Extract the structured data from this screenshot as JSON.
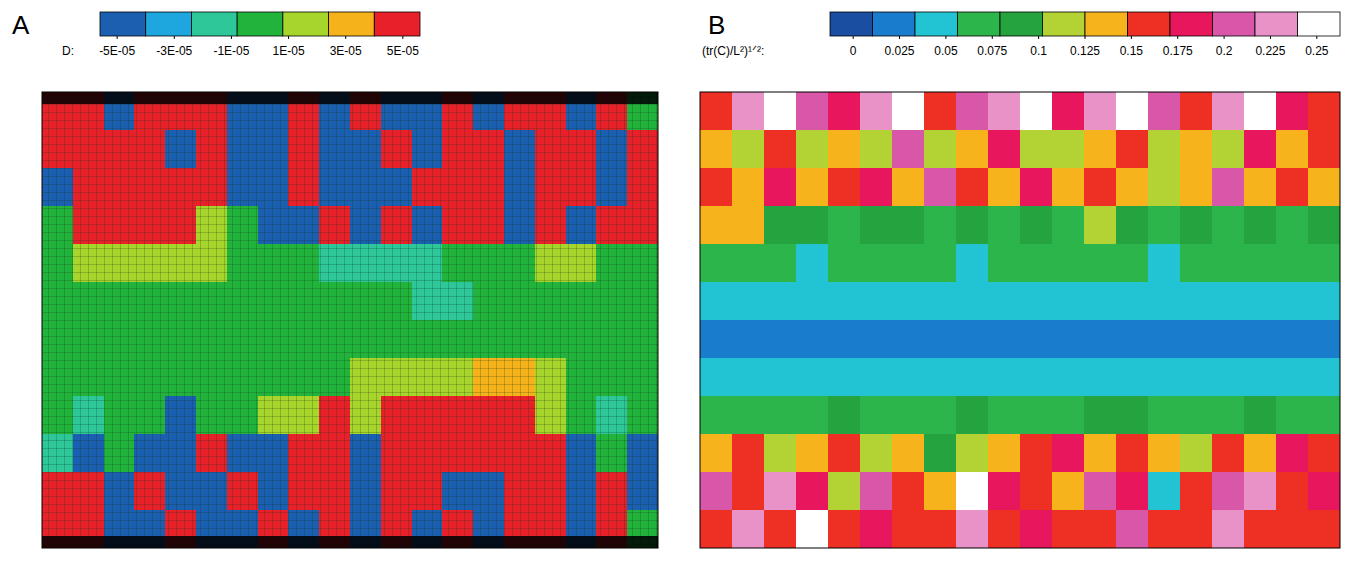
{
  "chart_data": [
    {
      "type": "heatmap",
      "title": "A",
      "tick_labels": false,
      "colorbar": {
        "label": "D:",
        "range": [
          -5.6e-05,
          5.6e-05
        ],
        "ticks": [
          {
            "value": -5e-05,
            "label": "-5E-05"
          },
          {
            "value": -3e-05,
            "label": "-3E-05"
          },
          {
            "value": -1e-05,
            "label": "-1E-05"
          },
          {
            "value": 1e-05,
            "label": "1E-05"
          },
          {
            "value": 3e-05,
            "label": "3E-05"
          },
          {
            "value": 5e-05,
            "label": "5E-05"
          }
        ],
        "colors": [
          "#1b5fb0",
          "#1ea6df",
          "#2dc79a",
          "#22b33c",
          "#a8d52b",
          "#f6b21a",
          "#e8202a"
        ]
      },
      "cells": [
        [
          5e-05,
          5e-05,
          -5e-05,
          5e-05,
          5e-05,
          5e-05,
          -5e-05,
          -5e-05,
          5e-05,
          -5e-05,
          5e-05,
          -5e-05,
          -5e-05,
          5e-05,
          -5e-05,
          5e-05,
          5e-05,
          -5e-05,
          5e-05,
          0
        ],
        [
          5e-05,
          5e-05,
          5e-05,
          5e-05,
          -5e-05,
          5e-05,
          -5e-05,
          -5e-05,
          5e-05,
          -5e-05,
          -5e-05,
          5e-05,
          -5e-05,
          5e-05,
          5e-05,
          -5e-05,
          5e-05,
          5e-05,
          -5e-05,
          5e-05
        ],
        [
          -5e-05,
          5e-05,
          5e-05,
          5e-05,
          5e-05,
          5e-05,
          -5e-05,
          -5e-05,
          5e-05,
          -5e-05,
          -5e-05,
          -5e-05,
          5e-05,
          5e-05,
          5e-05,
          -5e-05,
          5e-05,
          5e-05,
          -5e-05,
          5e-05
        ],
        [
          0,
          5e-05,
          5e-05,
          5e-05,
          5e-05,
          1.5e-05,
          0,
          -5e-05,
          -5e-05,
          5e-05,
          -5e-05,
          5e-05,
          -5e-05,
          5e-05,
          5e-05,
          -5e-05,
          5e-05,
          -5e-05,
          5e-05,
          5e-05
        ],
        [
          0,
          1.5e-05,
          1.5e-05,
          1.5e-05,
          1.5e-05,
          1.5e-05,
          0,
          0,
          0,
          -1.5e-05,
          -1.5e-05,
          -1.5e-05,
          -1.5e-05,
          0,
          0,
          0,
          1.5e-05,
          1.5e-05,
          0,
          0
        ],
        [
          0,
          0,
          0,
          0,
          0,
          0,
          0,
          0,
          0,
          0,
          0,
          0,
          -1.5e-05,
          -1.5e-05,
          0,
          0,
          0,
          0,
          0,
          0
        ],
        [
          0,
          0,
          0,
          0,
          0,
          0,
          0,
          0,
          0,
          0,
          0,
          0,
          0,
          0,
          0,
          0,
          0,
          0,
          0,
          0
        ],
        [
          0,
          0,
          0,
          0,
          0,
          0,
          0,
          0,
          0,
          0,
          1.5e-05,
          1.5e-05,
          1.5e-05,
          1.5e-05,
          3e-05,
          3e-05,
          1.5e-05,
          0,
          0,
          0
        ],
        [
          0,
          -1.5e-05,
          0,
          0,
          -5e-05,
          0,
          0,
          1.5e-05,
          1.5e-05,
          5e-05,
          1.5e-05,
          5e-05,
          5e-05,
          5e-05,
          5e-05,
          5e-05,
          1.5e-05,
          0,
          -1.5e-05,
          0
        ],
        [
          -1.5e-05,
          -5e-05,
          0,
          -5e-05,
          -5e-05,
          5e-05,
          -5e-05,
          -5e-05,
          5e-05,
          5e-05,
          -5e-05,
          5e-05,
          5e-05,
          5e-05,
          5e-05,
          5e-05,
          5e-05,
          -5e-05,
          0,
          -5e-05
        ],
        [
          5e-05,
          5e-05,
          -5e-05,
          5e-05,
          -5e-05,
          -5e-05,
          5e-05,
          -5e-05,
          5e-05,
          5e-05,
          -5e-05,
          5e-05,
          5e-05,
          -5e-05,
          -5e-05,
          5e-05,
          5e-05,
          -5e-05,
          5e-05,
          -5e-05
        ],
        [
          5e-05,
          5e-05,
          -5e-05,
          -5e-05,
          5e-05,
          -5e-05,
          -5e-05,
          5e-05,
          -5e-05,
          5e-05,
          -5e-05,
          5e-05,
          -5e-05,
          5e-05,
          -5e-05,
          5e-05,
          5e-05,
          -5e-05,
          5e-05,
          0
        ]
      ]
    },
    {
      "type": "heatmap",
      "title": "B",
      "tick_labels": false,
      "colorbar": {
        "label": "(tr(C)/L²)¹ᐟ²:",
        "range": [
          -0.0125,
          0.2625
        ],
        "ticks": [
          0,
          0.025,
          0.05,
          0.075,
          0.1,
          0.125,
          0.15,
          0.175,
          0.2,
          0.225,
          0.25
        ],
        "colors": [
          "#1a4ea0",
          "#1a7ccc",
          "#22c3d3",
          "#2cb54a",
          "#25a33f",
          "#b3d335",
          "#f6b31b",
          "#ed2f24",
          "#e8175d",
          "#d957a8",
          "#e892c8",
          "#ffffff"
        ]
      },
      "cells": [
        [
          0.16,
          0.23,
          0.25,
          0.205,
          0.18,
          0.23,
          0.25,
          0.16,
          0.205,
          0.23,
          0.25,
          0.18,
          0.23,
          0.25,
          0.205,
          0.16,
          0.23,
          0.25,
          0.18,
          0.16
        ],
        [
          0.135,
          0.115,
          0.16,
          0.115,
          0.135,
          0.115,
          0.205,
          0.115,
          0.135,
          0.18,
          0.115,
          0.115,
          0.135,
          0.16,
          0.115,
          0.135,
          0.115,
          0.18,
          0.135,
          0.16
        ],
        [
          0.16,
          0.135,
          0.18,
          0.135,
          0.16,
          0.18,
          0.135,
          0.205,
          0.16,
          0.135,
          0.18,
          0.135,
          0.16,
          0.135,
          0.115,
          0.135,
          0.205,
          0.135,
          0.16,
          0.135
        ],
        [
          0.135,
          0.135,
          0.09,
          0.09,
          0.07,
          0.09,
          0.09,
          0.07,
          0.09,
          0.07,
          0.09,
          0.07,
          0.115,
          0.09,
          0.07,
          0.09,
          0.07,
          0.09,
          0.07,
          0.09
        ],
        [
          0.07,
          0.07,
          0.07,
          0.045,
          0.07,
          0.07,
          0.07,
          0.07,
          0.045,
          0.07,
          0.07,
          0.07,
          0.07,
          0.07,
          0.045,
          0.07,
          0.07,
          0.07,
          0.07,
          0.07
        ],
        [
          0.045,
          0.045,
          0.045,
          0.045,
          0.045,
          0.045,
          0.045,
          0.045,
          0.045,
          0.045,
          0.045,
          0.045,
          0.045,
          0.045,
          0.045,
          0.045,
          0.045,
          0.045,
          0.045,
          0.045
        ],
        [
          0.02,
          0.02,
          0.02,
          0.02,
          0.02,
          0.02,
          0.02,
          0.02,
          0.02,
          0.02,
          0.02,
          0.02,
          0.02,
          0.02,
          0.02,
          0.02,
          0.02,
          0.02,
          0.02,
          0.02
        ],
        [
          0.045,
          0.045,
          0.045,
          0.045,
          0.045,
          0.045,
          0.045,
          0.045,
          0.045,
          0.045,
          0.045,
          0.045,
          0.045,
          0.045,
          0.045,
          0.045,
          0.045,
          0.045,
          0.045,
          0.045
        ],
        [
          0.07,
          0.07,
          0.07,
          0.07,
          0.09,
          0.07,
          0.07,
          0.07,
          0.09,
          0.07,
          0.07,
          0.07,
          0.09,
          0.09,
          0.07,
          0.07,
          0.07,
          0.09,
          0.07,
          0.07
        ],
        [
          0.135,
          0.16,
          0.115,
          0.135,
          0.16,
          0.115,
          0.135,
          0.09,
          0.115,
          0.135,
          0.16,
          0.18,
          0.135,
          0.16,
          0.135,
          0.115,
          0.16,
          0.135,
          0.18,
          0.16
        ],
        [
          0.205,
          0.16,
          0.23,
          0.18,
          0.115,
          0.205,
          0.16,
          0.135,
          0.25,
          0.18,
          0.16,
          0.135,
          0.205,
          0.18,
          0.045,
          0.16,
          0.205,
          0.23,
          0.16,
          0.18
        ],
        [
          0.16,
          0.23,
          0.16,
          0.25,
          0.16,
          0.18,
          0.16,
          0.16,
          0.23,
          0.16,
          0.18,
          0.16,
          0.16,
          0.205,
          0.16,
          0.16,
          0.23,
          0.16,
          0.16,
          0.16
        ]
      ]
    }
  ]
}
